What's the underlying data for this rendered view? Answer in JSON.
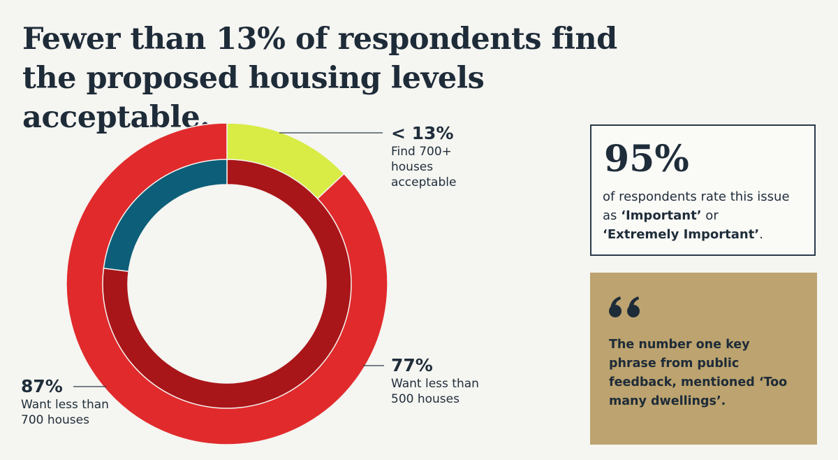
{
  "chart_data": {
    "type": "donut",
    "title": "Fewer than 13% of respondents find the proposed housing levels acceptable.",
    "rings": [
      {
        "values": [
          13,
          87
        ],
        "value_labels": [
          "< 13%",
          "87%"
        ],
        "labels": [
          "Find 700+ houses acceptable",
          "Want less than 700 houses"
        ],
        "colors": [
          "#d8ec45",
          "#e12a2c"
        ]
      },
      {
        "values": [
          77,
          23
        ],
        "value_labels": [
          "77%",
          null
        ],
        "labels": [
          "Want less than 500 houses",
          null
        ],
        "colors": [
          "#a91619",
          "#0d5e78"
        ]
      }
    ]
  },
  "stat_card": {
    "value": "95%",
    "text": [
      "of respondents rate this issue as ",
      "‘Important’",
      " or ",
      "‘Extremely Important’",
      "."
    ]
  },
  "quote_card": {
    "text": "The number one key phrase from public feedback, mentioned ‘Too many dwellings’."
  }
}
